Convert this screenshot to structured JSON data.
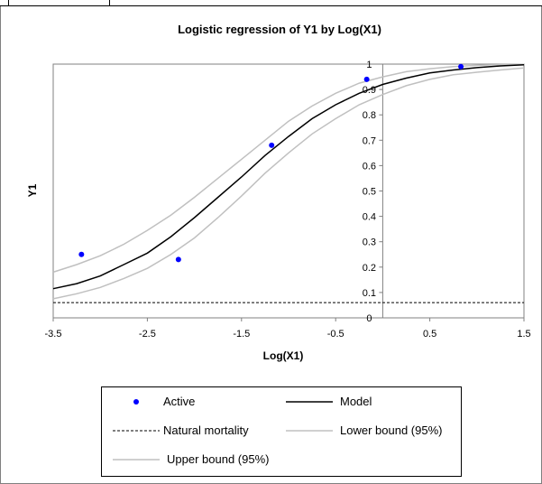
{
  "chart_data": {
    "type": "line",
    "title": "Logistic regression of Y1 by Log(X1)",
    "xlabel": "Log(X1)",
    "ylabel": "Y1",
    "xlim": [
      -3.5,
      1.5
    ],
    "ylim": [
      0,
      1
    ],
    "xticks": [
      "-3.5",
      "-2.5",
      "-1.5",
      "-0.5",
      "0.5",
      "1.5"
    ],
    "yticks": [
      "0",
      "0.1",
      "0.2",
      "0.3",
      "0.4",
      "0.5",
      "0.6",
      "0.7",
      "0.8",
      "0.9",
      "1"
    ],
    "grid": false,
    "legend_position": "bottom",
    "series": [
      {
        "name": "Active",
        "kind": "scatter",
        "color": "#0000ff",
        "points": [
          [
            -3.2,
            0.25
          ],
          [
            -2.17,
            0.23
          ],
          [
            -1.18,
            0.68
          ],
          [
            -0.17,
            0.94
          ],
          [
            0.83,
            0.99
          ]
        ]
      },
      {
        "name": "Model",
        "kind": "line",
        "color": "#000000",
        "points": [
          [
            -3.5,
            0.115
          ],
          [
            -3.25,
            0.135
          ],
          [
            -3.0,
            0.165
          ],
          [
            -2.75,
            0.21
          ],
          [
            -2.5,
            0.255
          ],
          [
            -2.25,
            0.32
          ],
          [
            -2.0,
            0.395
          ],
          [
            -1.75,
            0.475
          ],
          [
            -1.5,
            0.555
          ],
          [
            -1.25,
            0.64
          ],
          [
            -1.0,
            0.715
          ],
          [
            -0.75,
            0.785
          ],
          [
            -0.5,
            0.84
          ],
          [
            -0.25,
            0.885
          ],
          [
            0.0,
            0.92
          ],
          [
            0.25,
            0.945
          ],
          [
            0.5,
            0.965
          ],
          [
            0.75,
            0.977
          ],
          [
            1.0,
            0.986
          ],
          [
            1.25,
            0.993
          ],
          [
            1.5,
            0.997
          ]
        ]
      },
      {
        "name": "Natural mortality",
        "kind": "dashed",
        "color": "#000000",
        "points": [
          [
            -3.5,
            0.06
          ],
          [
            1.5,
            0.06
          ]
        ]
      },
      {
        "name": "Lower bound (95%)",
        "kind": "line",
        "color": "#c0c0c0",
        "points": [
          [
            -3.5,
            0.075
          ],
          [
            -3.25,
            0.095
          ],
          [
            -3.0,
            0.12
          ],
          [
            -2.75,
            0.155
          ],
          [
            -2.5,
            0.195
          ],
          [
            -2.25,
            0.25
          ],
          [
            -2.0,
            0.315
          ],
          [
            -1.75,
            0.395
          ],
          [
            -1.5,
            0.48
          ],
          [
            -1.25,
            0.57
          ],
          [
            -1.0,
            0.65
          ],
          [
            -0.75,
            0.725
          ],
          [
            -0.5,
            0.785
          ],
          [
            -0.25,
            0.84
          ],
          [
            0.0,
            0.88
          ],
          [
            0.25,
            0.915
          ],
          [
            0.5,
            0.94
          ],
          [
            0.75,
            0.958
          ],
          [
            1.0,
            0.968
          ],
          [
            1.25,
            0.977
          ],
          [
            1.5,
            0.985
          ]
        ]
      },
      {
        "name": "Upper bound (95%)",
        "kind": "line",
        "color": "#c0c0c0",
        "points": [
          [
            -3.5,
            0.18
          ],
          [
            -3.25,
            0.21
          ],
          [
            -3.0,
            0.245
          ],
          [
            -2.75,
            0.29
          ],
          [
            -2.5,
            0.345
          ],
          [
            -2.25,
            0.405
          ],
          [
            -2.0,
            0.475
          ],
          [
            -1.75,
            0.55
          ],
          [
            -1.5,
            0.625
          ],
          [
            -1.25,
            0.7
          ],
          [
            -1.0,
            0.775
          ],
          [
            -0.75,
            0.835
          ],
          [
            -0.5,
            0.885
          ],
          [
            -0.25,
            0.925
          ],
          [
            0.0,
            0.95
          ],
          [
            0.25,
            0.97
          ],
          [
            0.5,
            0.982
          ],
          [
            0.75,
            0.99
          ],
          [
            1.0,
            0.995
          ],
          [
            1.25,
            0.998
          ],
          [
            1.5,
            0.999
          ]
        ]
      }
    ]
  },
  "legend": {
    "items": [
      {
        "label": "Active",
        "kind": "marker",
        "color": "#0000ff"
      },
      {
        "label": "Model",
        "kind": "line",
        "color": "#000000"
      },
      {
        "label": "Natural mortality",
        "kind": "dashed",
        "color": "#000000"
      },
      {
        "label": "Lower bound (95%)",
        "kind": "line",
        "color": "#c0c0c0"
      },
      {
        "label": "Upper bound (95%)",
        "kind": "line",
        "color": "#c0c0c0"
      }
    ]
  }
}
